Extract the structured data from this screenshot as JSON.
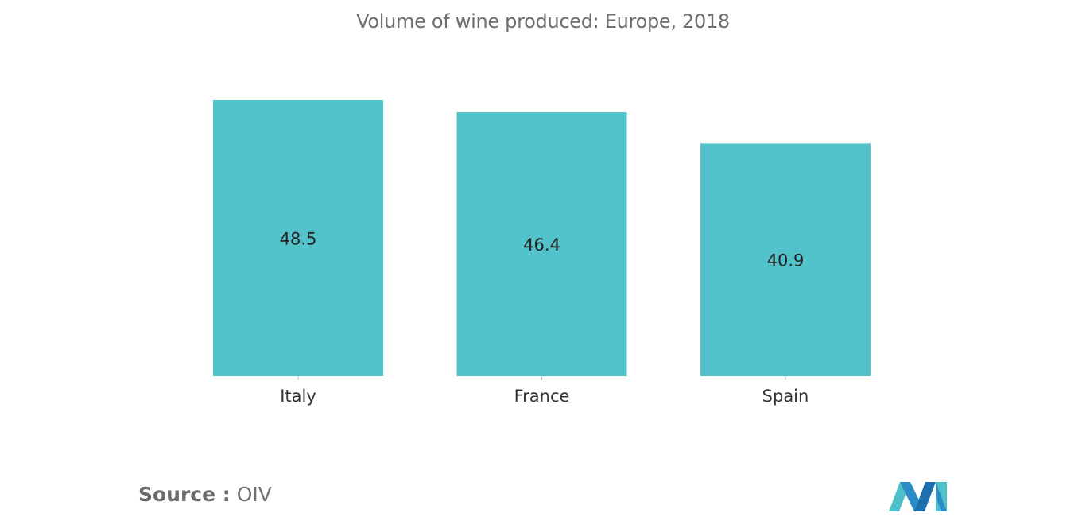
{
  "chart_data": {
    "type": "bar",
    "title": "Volume of wine produced: Europe, 2018",
    "categories": [
      "Italy",
      "France",
      "Spain"
    ],
    "values": [
      48.5,
      46.4,
      40.9
    ],
    "data_labels": [
      "48.5",
      "46.4",
      "40.9"
    ],
    "xlabel": "",
    "ylabel": "",
    "ylim": [
      0,
      48.5
    ],
    "grid": false,
    "legend": "none",
    "colors": {
      "bar": "#52c3ca",
      "label_text": "#222222",
      "tick_text": "#333333",
      "axis_tick": "#bbbbbb"
    }
  },
  "source": {
    "label": "Source :",
    "value": "OIV"
  },
  "logo": {
    "icon": "mordor-logo-icon",
    "colors": [
      "#4cbfc8",
      "#2a8cc4",
      "#1f6fae"
    ]
  }
}
